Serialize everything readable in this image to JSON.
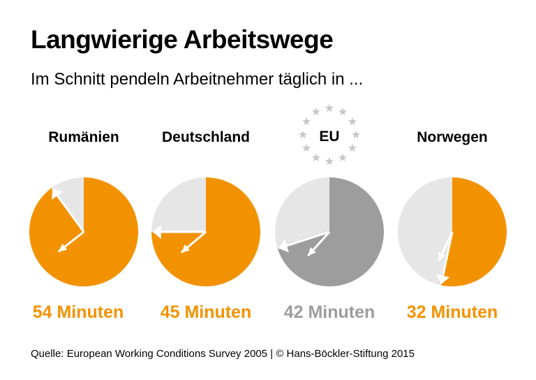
{
  "title": "Langwierige Arbeitswege",
  "subtitle": "Im Schnitt pendeln Arbeitnehmer täglich in ...",
  "source": "Quelle: European Working Conditions Survey 2005 | © Hans-Böckler-Stiftung 2015",
  "colors": {
    "highlight": "#f39200",
    "eu": "#9d9d9d",
    "rest": "#e6e6e6",
    "hands": "#ffffff"
  },
  "chart_data": {
    "type": "pie",
    "description_unit": "minutes of a 60-minute clock face",
    "total": 60,
    "categories": [
      "Rumänien",
      "Deutschland",
      "EU",
      "Norwegen"
    ],
    "values": [
      54,
      45,
      42,
      32
    ],
    "value_labels": [
      "54 Minuten",
      "45 Minuten",
      "42 Minuten",
      "32 Minuten"
    ],
    "series_colors": [
      "#f39200",
      "#f39200",
      "#9d9d9d",
      "#f39200"
    ],
    "eu_stars": 12
  }
}
